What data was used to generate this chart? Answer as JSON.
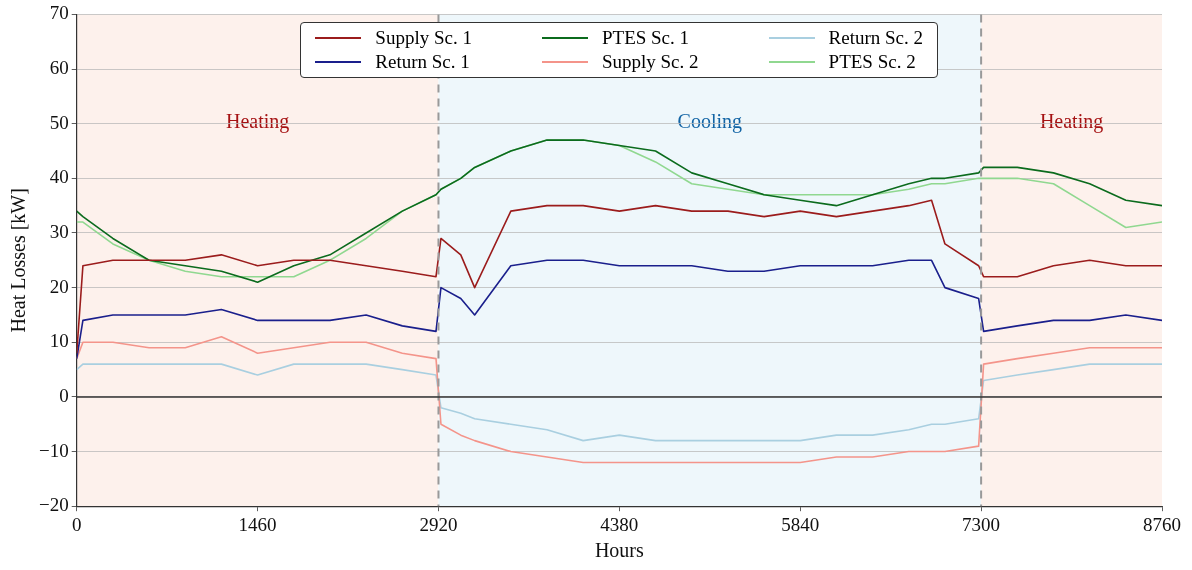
{
  "chart_data": {
    "type": "line",
    "xlabel": "Hours",
    "ylabel": "Heat Losses [kW]",
    "x": [
      0,
      50,
      292,
      584,
      876,
      1168,
      1460,
      1752,
      2044,
      2336,
      2628,
      2900,
      2940,
      3100,
      3212,
      3504,
      3796,
      4088,
      4380,
      4672,
      4964,
      5256,
      5548,
      5840,
      6132,
      6424,
      6716,
      6900,
      7008,
      7280,
      7320,
      7592,
      7884,
      8176,
      8468,
      8760
    ],
    "series": [
      {
        "name": "Supply Sc. 1",
        "color": "#9b1c1c",
        "values": [
          8,
          24,
          25,
          25,
          25,
          26,
          24,
          25,
          25,
          24,
          23,
          22,
          29,
          26,
          20,
          34,
          35,
          35,
          34,
          35,
          34,
          34,
          33,
          34,
          33,
          34,
          35,
          36,
          28,
          24,
          22,
          22,
          24,
          25,
          24,
          24
        ]
      },
      {
        "name": "Return Sc. 1",
        "color": "#1a1f8c",
        "values": [
          7,
          14,
          15,
          15,
          15,
          16,
          14,
          14,
          14,
          15,
          13,
          12,
          20,
          18,
          15,
          24,
          25,
          25,
          24,
          24,
          24,
          23,
          23,
          24,
          24,
          24,
          25,
          25,
          20,
          18,
          12,
          13,
          14,
          14,
          15,
          14
        ]
      },
      {
        "name": "PTES Sc. 1",
        "color": "#0b6b1d",
        "values": [
          34,
          33,
          29,
          25,
          24,
          23,
          21,
          24,
          26,
          30,
          34,
          37,
          38,
          40,
          42,
          45,
          47,
          47,
          46,
          45,
          41,
          39,
          37,
          36,
          35,
          37,
          39,
          40,
          40,
          41,
          42,
          42,
          41,
          39,
          36,
          35
        ]
      },
      {
        "name": "Supply Sc. 2",
        "color": "#f4948a",
        "values": [
          7,
          10,
          10,
          9,
          9,
          11,
          8,
          9,
          10,
          10,
          8,
          7,
          -5,
          -7,
          -8,
          -10,
          -11,
          -12,
          -12,
          -12,
          -12,
          -12,
          -12,
          -12,
          -11,
          -11,
          -10,
          -10,
          -10,
          -9,
          6,
          7,
          8,
          9,
          9,
          9
        ]
      },
      {
        "name": "Return Sc. 2",
        "color": "#a9cfe0",
        "values": [
          5,
          6,
          6,
          6,
          6,
          6,
          4,
          6,
          6,
          6,
          5,
          4,
          -2,
          -3,
          -4,
          -5,
          -6,
          -8,
          -7,
          -8,
          -8,
          -8,
          -8,
          -8,
          -7,
          -7,
          -6,
          -5,
          -5,
          -4,
          3,
          4,
          5,
          6,
          6,
          6
        ]
      },
      {
        "name": "PTES Sc. 2",
        "color": "#90d890",
        "values": [
          32,
          32,
          28,
          25,
          23,
          22,
          22,
          22,
          25,
          29,
          34,
          37,
          38,
          40,
          42,
          45,
          47,
          47,
          46,
          43,
          39,
          38,
          37,
          37,
          37,
          37,
          38,
          39,
          39,
          40,
          40,
          40,
          39,
          35,
          31,
          32
        ]
      }
    ],
    "xlim": [
      0,
      8760
    ],
    "xticks": [
      0,
      1460,
      2920,
      4380,
      5840,
      7300,
      8760
    ],
    "ylim": [
      -20,
      70
    ],
    "yticks": [
      {
        "value": -20,
        "label": "−20"
      },
      {
        "value": -10,
        "label": "−10"
      },
      0,
      10,
      20,
      30,
      40,
      50,
      60,
      70
    ],
    "bands": [
      {
        "axis": "x",
        "from": 0,
        "to": 2920,
        "label": "Heating",
        "color": "#fdf1ec"
      },
      {
        "axis": "x",
        "from": 2920,
        "to": 7300,
        "label": "Cooling",
        "color": "#eef7fb"
      },
      {
        "axis": "x",
        "from": 7300,
        "to": 8760,
        "label": "Heating",
        "color": "#fdf1ec"
      }
    ],
    "ref_lines": [
      {
        "axis": "x",
        "value": 2920,
        "color": "#999999",
        "line_style": "dashed"
      },
      {
        "axis": "x",
        "value": 7300,
        "color": "#999999",
        "line_style": "dashed"
      },
      {
        "axis": "y",
        "value": 0,
        "color": "#333333",
        "line_style": "solid"
      }
    ],
    "grid": "y",
    "legend": "top",
    "marker": "none",
    "line_style": "solid"
  }
}
